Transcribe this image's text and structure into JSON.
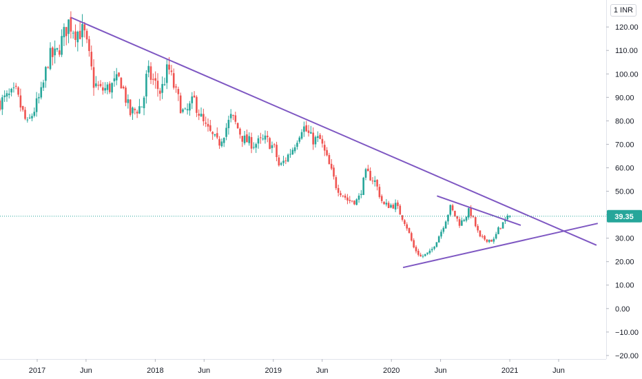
{
  "currency_button": "1 INR",
  "chart_data": {
    "type": "candlestick",
    "y_ticks": [
      "120.00",
      "110.00",
      "100.00",
      "90.00",
      "80.00",
      "70.00",
      "60.00",
      "50.00",
      "40.00",
      "30.00",
      "20.00",
      "10.00",
      "0.00",
      "−10.00",
      "−20.00"
    ],
    "y_tick_values": [
      120,
      110,
      100,
      90,
      80,
      70,
      60,
      50,
      40,
      30,
      20,
      10,
      0,
      -10,
      -20
    ],
    "ylim": [
      -21.5,
      131.5
    ],
    "x_ticks": [
      "2017",
      "Jun",
      "2018",
      "Jun",
      "2019",
      "Jun",
      "2020",
      "Jun",
      "2021",
      "Jun"
    ],
    "x_tick_dates": [
      "2017-01-01",
      "2017-06-01",
      "2018-01-01",
      "2018-06-01",
      "2019-01-01",
      "2019-06-01",
      "2020-01-01",
      "2020-06-01",
      "2021-01-01",
      "2021-06-01"
    ],
    "xlim": [
      "2016-09-08",
      "2021-10-26"
    ],
    "last_price": 39.35,
    "last_price_label": "39.35",
    "colors": {
      "up": "#26a69a",
      "down": "#ef5350",
      "trendline": "#7e57c2",
      "axis_text": "#131722",
      "price_tag": "#26a69a"
    },
    "trendlines": [
      {
        "name": "resistance",
        "start": {
          "date": "2017-04-16",
          "price": 124
        },
        "end": {
          "date": "2021-09-26",
          "price": 27
        }
      },
      {
        "name": "support",
        "start": {
          "date": "2020-02-06",
          "price": 17.5
        },
        "end": {
          "date": "2021-09-30",
          "price": 36.3
        }
      },
      {
        "name": "triangle-upper",
        "start": {
          "date": "2020-05-21",
          "price": 48
        },
        "end": {
          "date": "2021-02-04",
          "price": 35.5
        }
      }
    ],
    "anchors": [
      [
        "2016-09-08",
        88
      ],
      [
        "2016-10-27",
        92
      ],
      [
        "2016-12-01",
        78
      ],
      [
        "2017-01-15",
        92
      ],
      [
        "2017-02-05",
        107
      ],
      [
        "2017-03-01",
        108
      ],
      [
        "2017-04-08",
        122
      ],
      [
        "2017-05-01",
        118
      ],
      [
        "2017-05-25",
        118
      ],
      [
        "2017-06-09",
        108
      ],
      [
        "2017-06-25",
        96
      ],
      [
        "2017-07-16",
        93
      ],
      [
        "2017-08-11",
        94
      ],
      [
        "2017-09-15",
        98
      ],
      [
        "2017-10-15",
        83
      ],
      [
        "2017-11-24",
        87
      ],
      [
        "2017-12-07",
        101
      ],
      [
        "2018-01-18",
        92
      ],
      [
        "2018-02-10",
        103
      ],
      [
        "2018-03-05",
        92
      ],
      [
        "2018-04-01",
        82
      ],
      [
        "2018-05-01",
        89
      ],
      [
        "2018-06-01",
        78
      ],
      [
        "2018-07-15",
        70
      ],
      [
        "2018-08-25",
        82
      ],
      [
        "2018-10-01",
        72
      ],
      [
        "2018-11-03",
        70
      ],
      [
        "2018-12-10",
        72
      ],
      [
        "2019-01-05",
        68
      ],
      [
        "2019-01-20",
        60
      ],
      [
        "2019-03-01",
        68
      ],
      [
        "2019-04-01",
        78
      ],
      [
        "2019-05-01",
        72
      ],
      [
        "2019-05-25",
        72
      ],
      [
        "2019-06-15",
        64
      ],
      [
        "2019-07-15",
        52
      ],
      [
        "2019-08-20",
        46
      ],
      [
        "2019-09-20",
        46
      ],
      [
        "2019-10-15",
        58
      ],
      [
        "2019-11-12",
        54
      ],
      [
        "2019-12-07",
        44
      ],
      [
        "2020-01-15",
        44
      ],
      [
        "2020-02-15",
        36
      ],
      [
        "2020-03-10",
        26
      ],
      [
        "2020-04-01",
        22
      ],
      [
        "2020-05-01",
        24
      ],
      [
        "2020-06-03",
        33
      ],
      [
        "2020-07-01",
        43
      ],
      [
        "2020-07-31",
        36
      ],
      [
        "2020-08-30",
        42
      ],
      [
        "2020-10-01",
        30
      ],
      [
        "2020-11-12",
        29
      ],
      [
        "2020-12-01",
        35
      ],
      [
        "2021-01-01",
        39.35
      ]
    ],
    "seed": 7,
    "n_candles": 224
  }
}
